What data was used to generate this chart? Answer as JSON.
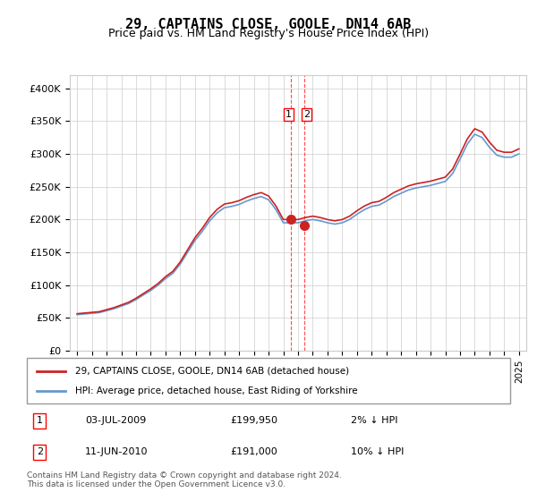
{
  "title": "29, CAPTAINS CLOSE, GOOLE, DN14 6AB",
  "subtitle": "Price paid vs. HM Land Registry's House Price Index (HPI)",
  "sale_dates": [
    "2009-07-03",
    "2010-06-11"
  ],
  "sale_prices": [
    199950,
    191000
  ],
  "sale_labels": [
    "1",
    "2"
  ],
  "legend_line1": "29, CAPTAINS CLOSE, GOOLE, DN14 6AB (detached house)",
  "legend_line2": "HPI: Average price, detached house, East Riding of Yorkshire",
  "annotation1_date": "03-JUL-2009",
  "annotation1_price": "£199,950",
  "annotation1_hpi": "2% ↓ HPI",
  "annotation2_date": "11-JUN-2010",
  "annotation2_price": "£191,000",
  "annotation2_hpi": "10% ↓ HPI",
  "footnote": "Contains HM Land Registry data © Crown copyright and database right 2024.\nThis data is licensed under the Open Government Licence v3.0.",
  "ylim": [
    0,
    420000
  ],
  "hpi_color": "#6699cc",
  "sale_line_color": "#cc2222",
  "sale_dot_color": "#cc2222",
  "background_color": "#ffffff",
  "grid_color": "#cccccc"
}
